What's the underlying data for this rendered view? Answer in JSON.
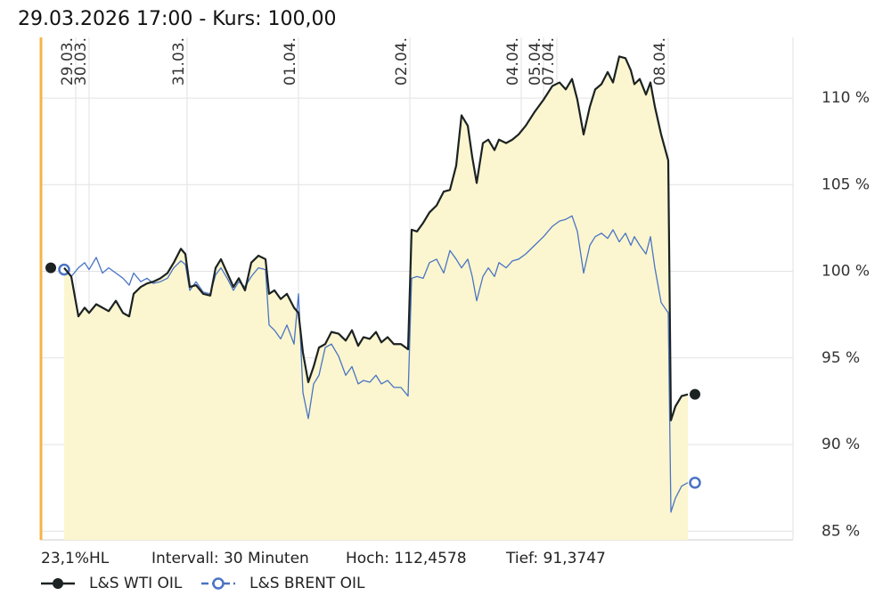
{
  "chart_data": {
    "type": "line",
    "title": "29.03.2026 17:00  -  Kurs: 100,00",
    "x": [
      5.4,
      7,
      8.6,
      10,
      11,
      12.6,
      14,
      15.4,
      17,
      18.6,
      20,
      21,
      22.6,
      24,
      25.4,
      27,
      28.6,
      30,
      31.6,
      32.6,
      33.6,
      35,
      36.6,
      38.2,
      39.4,
      40.6,
      42,
      43.4,
      44.6,
      46,
      47.4,
      49,
      50.6,
      51.4,
      52.6,
      54,
      55.4,
      57,
      58,
      59,
      60.2,
      61.4,
      62.6,
      64,
      65.4,
      67,
      68.6,
      70,
      71.4,
      72.6,
      74,
      75.4,
      76.6,
      78,
      79.4,
      81,
      82.6,
      83.4,
      84.6,
      86,
      87.4,
      89,
      90.6,
      92,
      93.4,
      94.6,
      96,
      97,
      98,
      99.4,
      100.6,
      102,
      103,
      104.6,
      106,
      107.4,
      109,
      111,
      113,
      115,
      116.6,
      118,
      119.4,
      120.6,
      122,
      123.4,
      124.6,
      126,
      127.4,
      128.6,
      130,
      131.4,
      132.6,
      133.4,
      134.6,
      136,
      137,
      138,
      139.4,
      141,
      141.6,
      142.6,
      144,
      145.4
    ],
    "xlim": [
      0,
      169
    ],
    "xticks": [
      {
        "value": 8,
        "label": "29.03."
      },
      {
        "value": 11,
        "label": "30.03."
      },
      {
        "value": 33,
        "label": "31.03."
      },
      {
        "value": 58,
        "label": "01.04."
      },
      {
        "value": 83,
        "label": "02.04."
      },
      {
        "value": 108,
        "label": "04.04."
      },
      {
        "value": 113,
        "label": "05.04."
      },
      {
        "value": 116,
        "label": "07.04."
      },
      {
        "value": 141,
        "label": "08.04."
      }
    ],
    "ylim": [
      84.5,
      113.5
    ],
    "yticks": [
      {
        "value": 85,
        "label": "85 %"
      },
      {
        "value": 90,
        "label": "90 %"
      },
      {
        "value": 95,
        "label": "95 %"
      },
      {
        "value": 100,
        "label": "100 %"
      },
      {
        "value": 105,
        "label": "105 %"
      },
      {
        "value": 110,
        "label": "110 %"
      }
    ],
    "grid": true,
    "series": [
      {
        "name": "L&S WTI OIL",
        "color": "#1c2222",
        "fill": "#fbf6cf",
        "values": [
          100.2,
          99.7,
          97.4,
          97.9,
          97.6,
          98.1,
          97.9,
          97.7,
          98.3,
          97.6,
          97.4,
          98.7,
          99.1,
          99.3,
          99.4,
          99.6,
          99.9,
          100.5,
          101.3,
          101.0,
          99.1,
          99.2,
          98.7,
          98.6,
          100.2,
          100.7,
          99.9,
          99.1,
          99.6,
          98.9,
          100.5,
          100.9,
          100.7,
          98.7,
          98.9,
          98.4,
          98.7,
          97.9,
          97.6,
          95.3,
          93.6,
          94.5,
          95.6,
          95.8,
          96.5,
          96.4,
          96.0,
          96.6,
          95.7,
          96.2,
          96.1,
          96.5,
          95.9,
          96.2,
          95.8,
          95.8,
          95.5,
          102.4,
          102.3,
          102.8,
          103.4,
          103.8,
          104.6,
          104.7,
          106.1,
          109.0,
          108.4,
          106.6,
          105.1,
          107.4,
          107.6,
          107.0,
          107.6,
          107.4,
          107.6,
          107.9,
          108.4,
          109.2,
          109.9,
          110.7,
          110.9,
          110.5,
          111.1,
          109.9,
          107.9,
          109.5,
          110.5,
          110.8,
          111.5,
          110.9,
          112.4,
          112.3,
          111.6,
          110.8,
          111.1,
          110.2,
          110.9,
          109.5,
          107.9,
          106.4,
          91.4,
          92.2,
          92.8,
          92.9
        ]
      },
      {
        "name": "L&S BRENT OIL",
        "color": "#4a74c4",
        "values": [
          100.1,
          99.7,
          100.2,
          100.5,
          100.1,
          100.8,
          99.9,
          100.2,
          99.9,
          99.6,
          99.2,
          99.9,
          99.4,
          99.6,
          99.3,
          99.4,
          99.6,
          100.2,
          100.6,
          100.4,
          98.9,
          99.4,
          98.8,
          98.7,
          99.8,
          100.2,
          99.6,
          98.9,
          99.4,
          99.1,
          99.7,
          100.2,
          100.1,
          96.9,
          96.6,
          96.1,
          96.9,
          95.8,
          98.7,
          93.0,
          91.5,
          93.5,
          94.0,
          95.6,
          95.8,
          95.1,
          94.0,
          94.5,
          93.5,
          93.7,
          93.6,
          94.0,
          93.5,
          93.7,
          93.3,
          93.3,
          92.8,
          99.6,
          99.7,
          99.6,
          100.5,
          100.7,
          99.9,
          101.2,
          100.7,
          100.2,
          100.7,
          99.7,
          98.3,
          99.7,
          100.2,
          99.7,
          100.5,
          100.2,
          100.6,
          100.7,
          101.0,
          101.5,
          102.0,
          102.6,
          102.9,
          103.0,
          103.2,
          102.3,
          99.9,
          101.5,
          102.0,
          102.2,
          101.9,
          102.4,
          101.7,
          102.2,
          101.5,
          102.0,
          101.5,
          101.0,
          102.0,
          100.2,
          98.2,
          97.6,
          86.1,
          86.9,
          87.6,
          87.8
        ]
      }
    ],
    "footer": [
      "23,1%HL",
      "Intervall: 30 Minuten",
      "Hoch: 112,4578",
      "Tief: 91,3747"
    ]
  }
}
